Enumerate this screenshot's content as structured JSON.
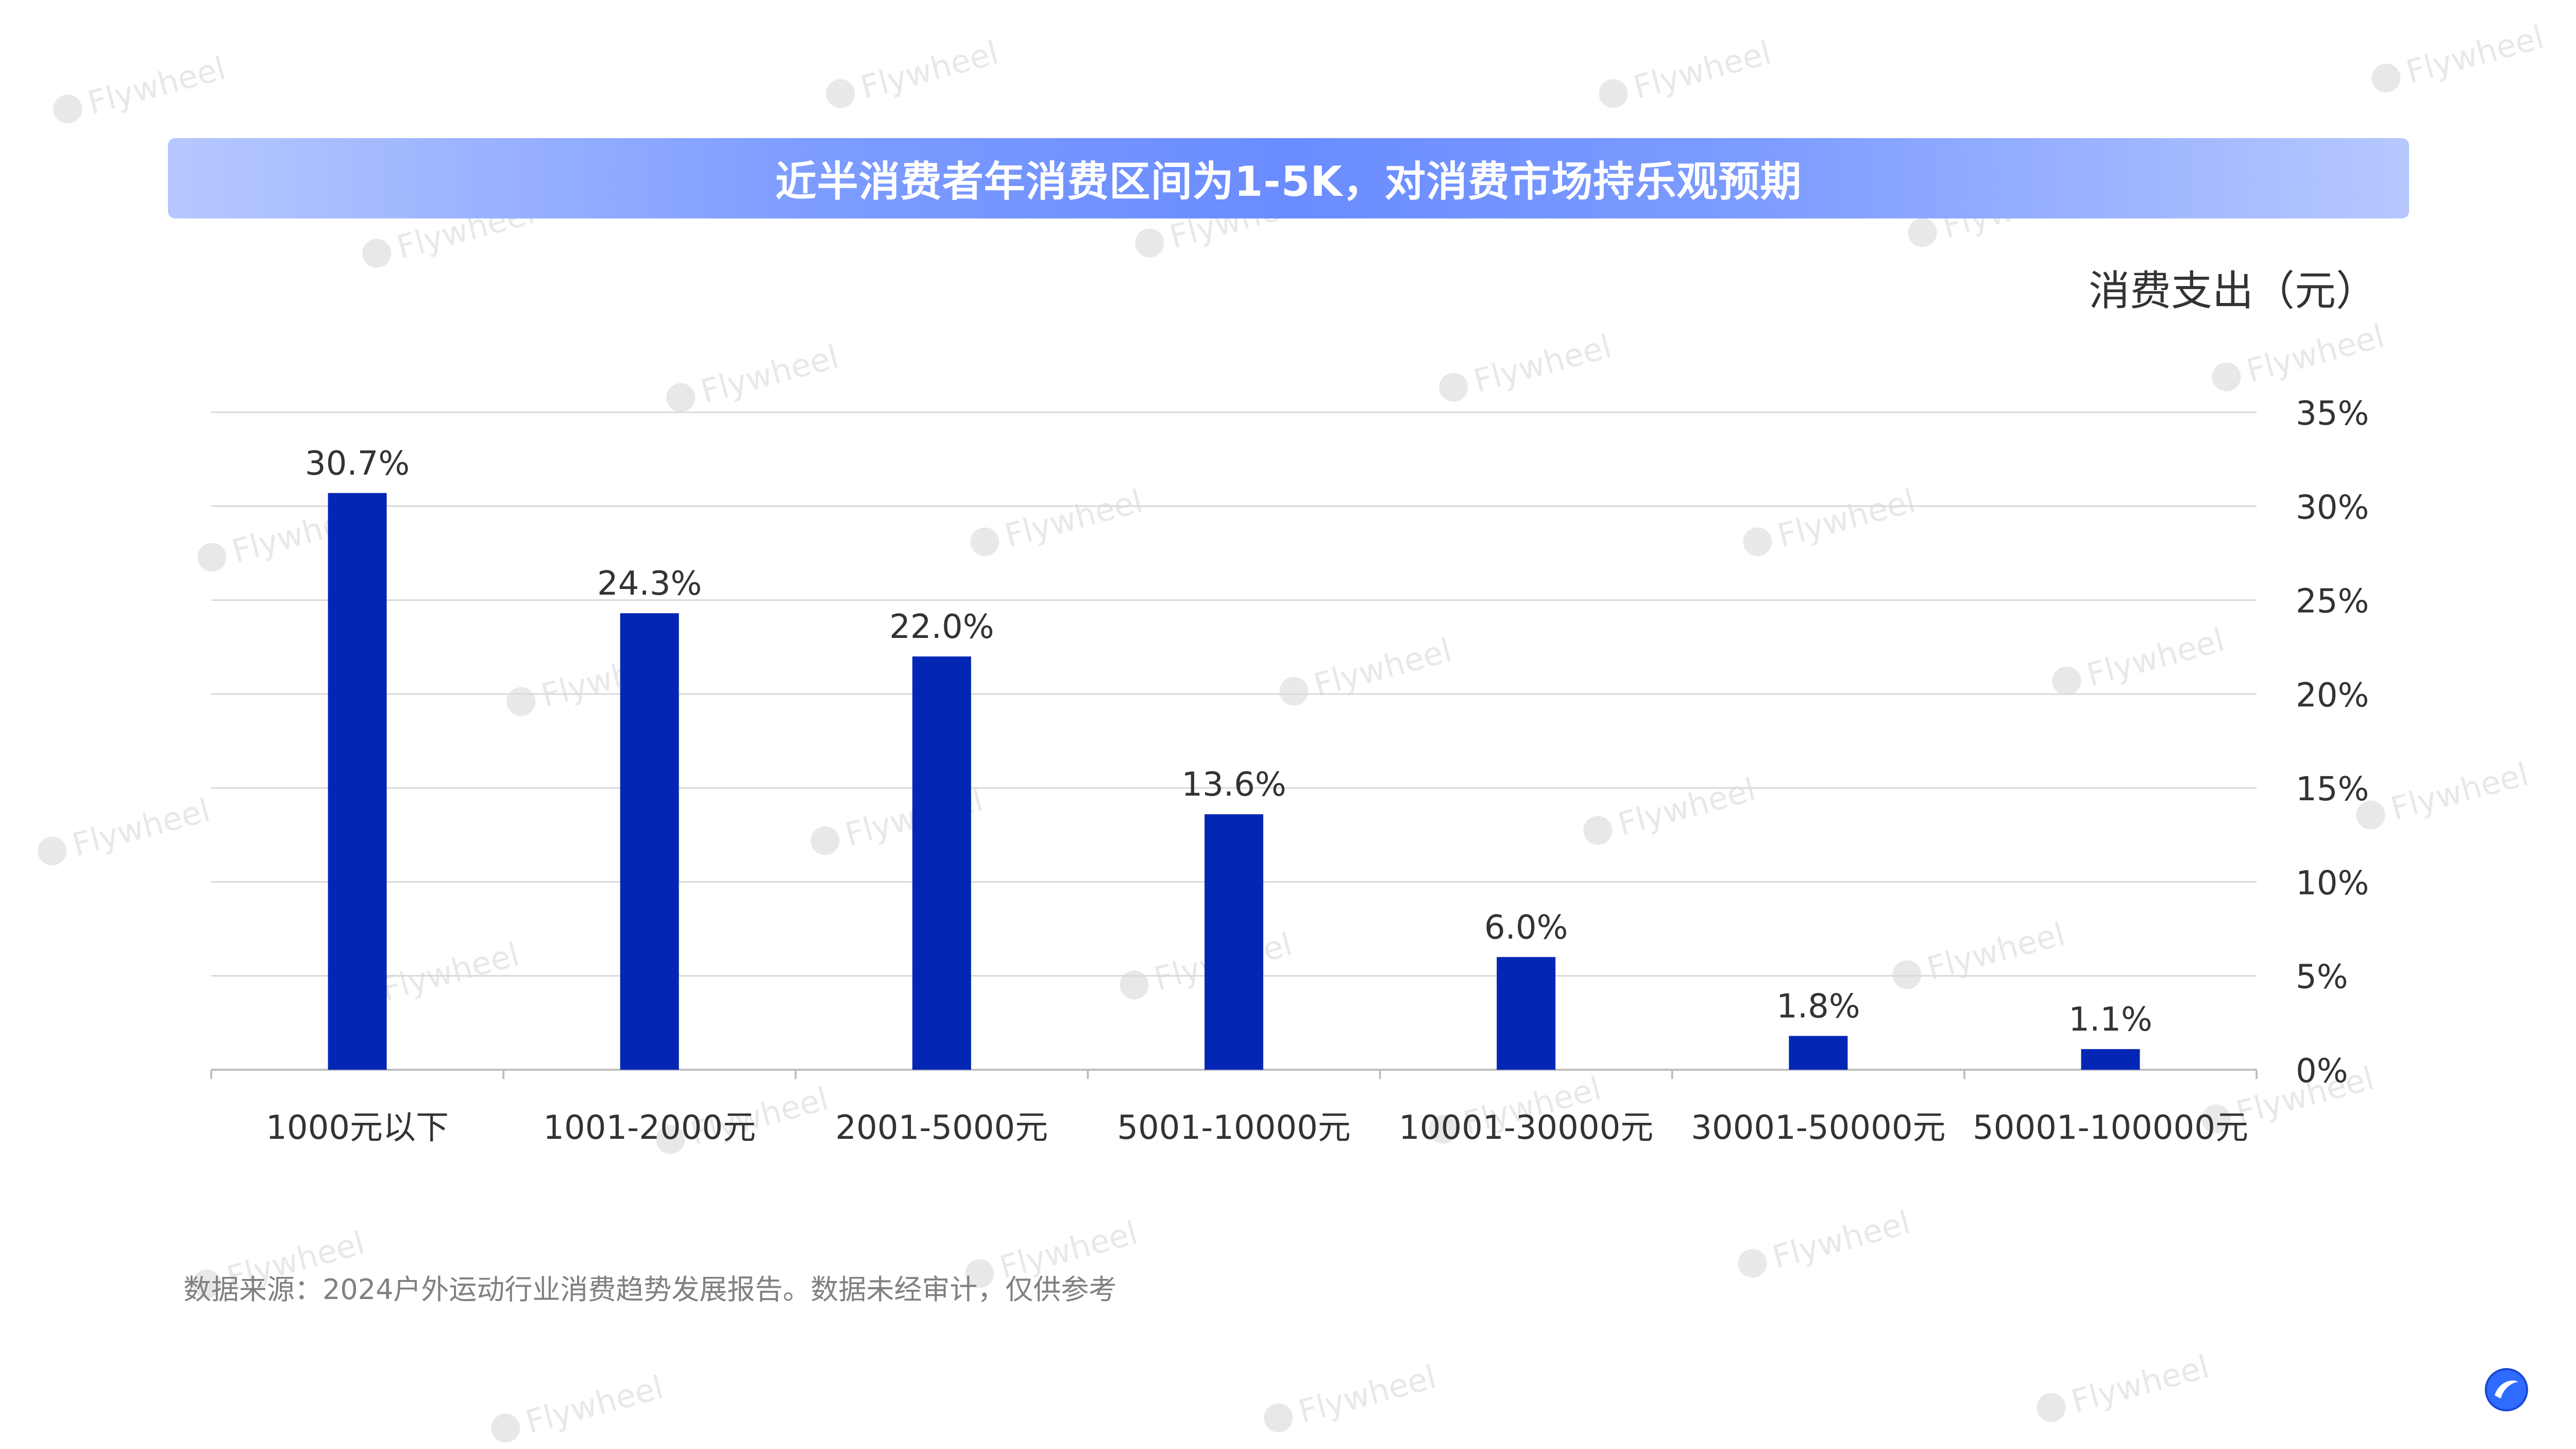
{
  "title": "近半消费者年消费区间为1-5K，对消费市场持乐观预期",
  "watermark_text": "Flywheel",
  "source_note": "数据来源：2024户外运动行业消费趋势发展报告。数据未经审计，仅供参考",
  "colors": {
    "bar": "#0327b4",
    "banner_mid": "#6a8cff",
    "banner_edge": "#b7c8ff",
    "grid": "#d9d9d9",
    "text": "#333333",
    "logo": "#2f6bff"
  },
  "chart_data": {
    "type": "bar",
    "unit_label": "消费支出（元）",
    "categories": [
      "1000元以下",
      "1001-2000元",
      "2001-5000元",
      "5001-10000元",
      "10001-30000元",
      "30001-50000元",
      "50001-100000元"
    ],
    "values": [
      30.7,
      24.3,
      22.0,
      13.6,
      6.0,
      1.8,
      1.1
    ],
    "data_labels": [
      "30.7%",
      "24.3%",
      "22.0%",
      "13.6%",
      "6.0%",
      "1.8%",
      "1.1%"
    ],
    "y_ticks": [
      "0%",
      "5%",
      "10%",
      "15%",
      "20%",
      "25%",
      "30%",
      "35%"
    ],
    "ylim": [
      0,
      35
    ],
    "y_axis_position": "right",
    "grid": true
  }
}
